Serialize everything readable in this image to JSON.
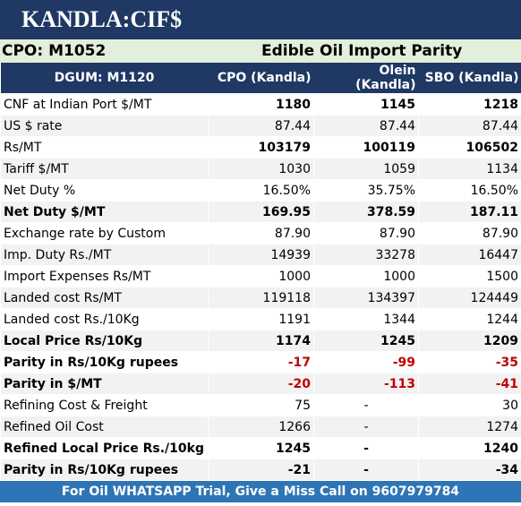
{
  "header": {
    "title": "KANDLA:CIF$",
    "subtitle_left": "CPO: M1052",
    "subtitle_center": "Edible Oil Import Parity"
  },
  "table": {
    "columns": [
      "DGUM: M1120",
      "CPO (Kandla)",
      "Olein (Kandla)",
      "SBO (Kandla)"
    ],
    "rows": [
      [
        "CNF at Indian Port $/MT",
        "1180",
        "1145",
        "1218"
      ],
      [
        "US $ rate",
        "87.44",
        "87.44",
        "87.44"
      ],
      [
        "Rs/MT",
        "103179",
        "100119",
        "106502"
      ],
      [
        "Tariff $/MT",
        "1030",
        "1059",
        "1134"
      ],
      [
        "Net Duty %",
        "16.50%",
        "35.75%",
        "16.50%"
      ],
      [
        "Net Duty $/MT",
        "169.95",
        "378.59",
        "187.11"
      ],
      [
        "Exchange rate by Custom",
        "87.90",
        "87.90",
        "87.90"
      ],
      [
        "Imp. Duty Rs./MT",
        "14939",
        "33278",
        "16447"
      ],
      [
        "Import Expenses Rs/MT",
        "1000",
        "1000",
        "1500"
      ],
      [
        "Landed cost Rs/MT",
        "119118",
        "134397",
        "124449"
      ],
      [
        "Landed cost Rs./10Kg",
        "1191",
        "1344",
        "1244"
      ],
      [
        "Local Price Rs/10Kg",
        "1174",
        "1245",
        "1209"
      ],
      [
        "Parity in Rs/10Kg rupees",
        "-17",
        "-99",
        "-35"
      ],
      [
        "Parity in $/MT",
        "-20",
        "-113",
        "-41"
      ],
      [
        "Refining Cost & Freight",
        "75",
        "-",
        "30"
      ],
      [
        "Refined Oil Cost",
        "1266",
        "-",
        "1274"
      ],
      [
        "Refined Local Price Rs./10kg",
        "1245",
        "-",
        "1240"
      ],
      [
        "Parity in Rs/10Kg rupees",
        "-21",
        "-",
        "-34"
      ]
    ]
  },
  "footer": "For Oil WHATSAPP Trial, Give a Miss Call on 9607979784"
}
